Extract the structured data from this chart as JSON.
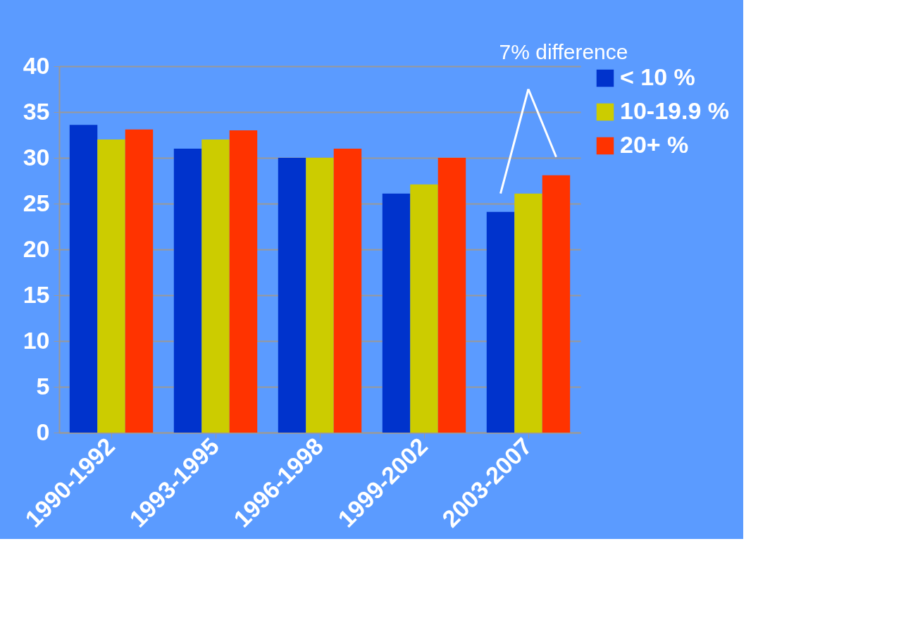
{
  "chart_data": {
    "type": "bar",
    "categories": [
      "1990-1992",
      "1993-1995",
      "1996-1998",
      "1999-2002",
      "2003-2007"
    ],
    "series": [
      {
        "name": "< 10 %",
        "color": "#0033cc",
        "values": [
          33.6,
          31,
          30,
          26.1,
          24.1
        ]
      },
      {
        "name": "10-19.9 %",
        "color": "#cccc00",
        "values": [
          32,
          32,
          30,
          27.1,
          26.1
        ]
      },
      {
        "name": "20+ %",
        "color": "#ff3300",
        "values": [
          33.1,
          33,
          31,
          30,
          28.1
        ]
      }
    ],
    "ylim": [
      0,
      40
    ],
    "yticks": [
      0,
      5,
      10,
      15,
      20,
      25,
      30,
      35,
      40
    ],
    "grid": "y",
    "legend": "right",
    "annotations": [
      "7% difference"
    ]
  }
}
